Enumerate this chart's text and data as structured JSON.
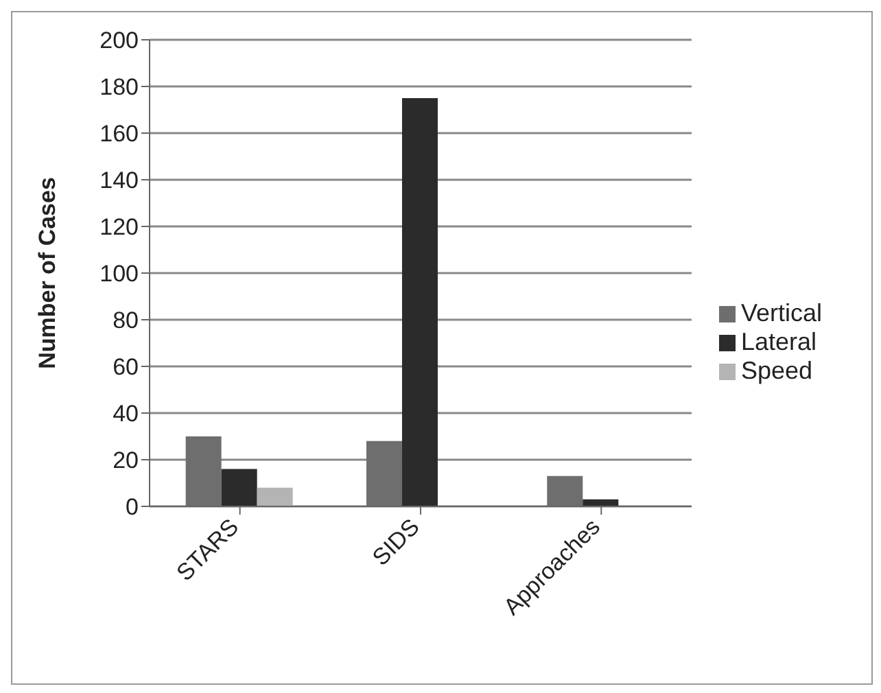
{
  "chart_data": {
    "type": "bar",
    "ylabel": "Number of Cases",
    "categories": [
      "STARS",
      "SIDS",
      "Approaches"
    ],
    "series": [
      {
        "name": "Vertical",
        "color": "#6e6e6e",
        "values": [
          30,
          28,
          13
        ]
      },
      {
        "name": "Lateral",
        "color": "#2b2b2b",
        "values": [
          16,
          175,
          3
        ]
      },
      {
        "name": "Speed",
        "color": "#b4b4b4",
        "values": [
          8,
          null,
          null
        ]
      }
    ],
    "ylim": [
      0,
      200
    ],
    "yticks": [
      0,
      20,
      40,
      60,
      80,
      100,
      120,
      140,
      160,
      180,
      200
    ],
    "grid": "y",
    "legend": "right"
  }
}
